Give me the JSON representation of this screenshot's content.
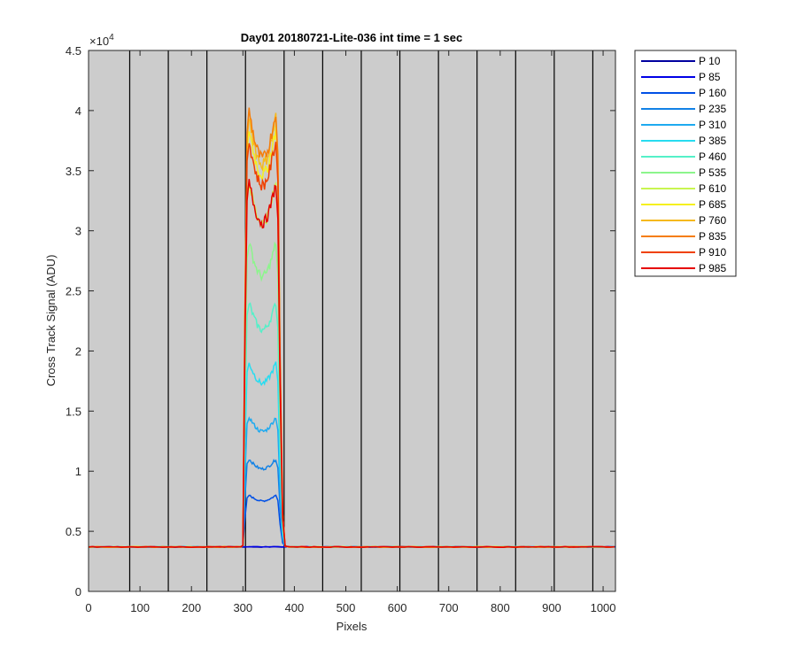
{
  "chart_data": {
    "type": "line",
    "title": "Day01 20180721-Lite-036 int time = 1 sec",
    "xlabel": "Pixels",
    "ylabel": "Cross Track Signal (ADU)",
    "exponent_label": "×10",
    "exponent_power": "4",
    "xlim": [
      0,
      1024
    ],
    "ylim": [
      0,
      45000
    ],
    "x_ticks": [
      0,
      100,
      200,
      300,
      400,
      500,
      600,
      700,
      800,
      900,
      1000
    ],
    "x_tick_labels": [
      "0",
      "100",
      "200",
      "300",
      "400",
      "500",
      "600",
      "700",
      "800",
      "900",
      "1000"
    ],
    "y_ticks": [
      0,
      5000,
      10000,
      15000,
      20000,
      25000,
      30000,
      35000,
      40000,
      45000
    ],
    "y_tick_labels": [
      "0",
      "0.5",
      "1",
      "1.5",
      "2",
      "2.5",
      "3",
      "3.5",
      "4",
      "4.5"
    ],
    "background": "#cccccc",
    "grid": false,
    "vertical_lines": [
      80,
      155,
      230,
      305,
      380,
      455,
      530,
      605,
      680,
      755,
      830,
      905,
      980
    ],
    "baseline": 3700,
    "legend_position": "outside-top-right",
    "series": [
      {
        "name": "P 10",
        "color": "#0000a0",
        "plateau": 3700
      },
      {
        "name": "P 85",
        "color": "#0000e6",
        "plateau": 3700
      },
      {
        "name": "P 160",
        "color": "#0050e6",
        "plateau": 8000
      },
      {
        "name": "P 235",
        "color": "#1282e6",
        "plateau": 11000
      },
      {
        "name": "P 310",
        "color": "#1eaaf0",
        "plateau": 14500
      },
      {
        "name": "P 385",
        "color": "#28dcf0",
        "plateau": 19000
      },
      {
        "name": "P 460",
        "color": "#55f0c8",
        "plateau": 24000
      },
      {
        "name": "P 535",
        "color": "#8cf58c",
        "plateau": 29000
      },
      {
        "name": "P 610",
        "color": "#c8f550",
        "plateau": 34000
      },
      {
        "name": "P 685",
        "color": "#f5f01e",
        "plateau": 38500
      },
      {
        "name": "P 760",
        "color": "#f5b91e",
        "plateau": 39500
      },
      {
        "name": "P 835",
        "color": "#f57d0a",
        "plateau": 40000
      },
      {
        "name": "P 910",
        "color": "#f04100",
        "plateau": 37500
      },
      {
        "name": "P 985",
        "color": "#e60000",
        "plateau": 34000
      }
    ]
  }
}
